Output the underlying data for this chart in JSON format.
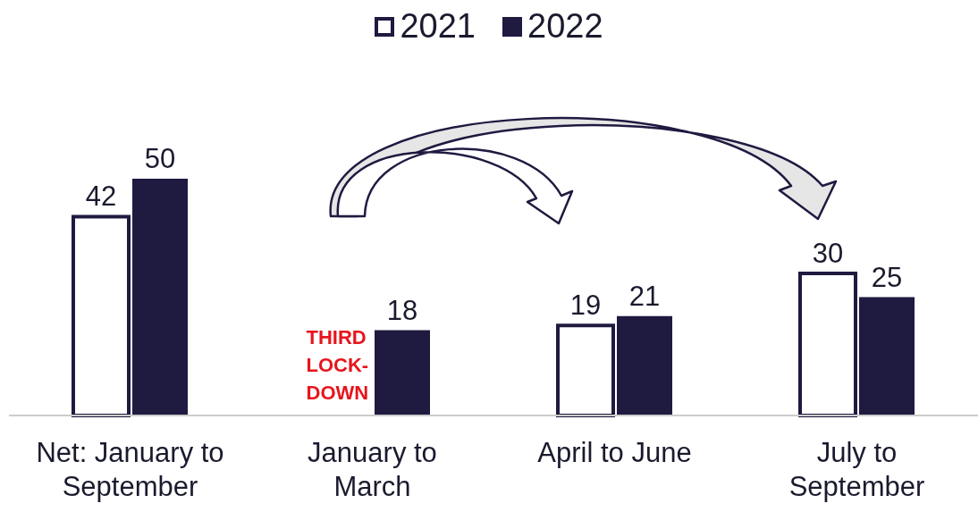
{
  "chart_data": {
    "type": "bar",
    "categories": [
      "Net: January to September",
      "January to March",
      "April to June",
      "July to September"
    ],
    "series": [
      {
        "name": "2021",
        "color": "#ffffff",
        "values": [
          42,
          null,
          19,
          30
        ]
      },
      {
        "name": "2022",
        "color": "#1f1a40",
        "values": [
          50,
          18,
          21,
          25
        ]
      }
    ],
    "data_labels": true,
    "legend": "top",
    "annotations": [
      "THIRD LOCK-DOWN"
    ]
  }
}
